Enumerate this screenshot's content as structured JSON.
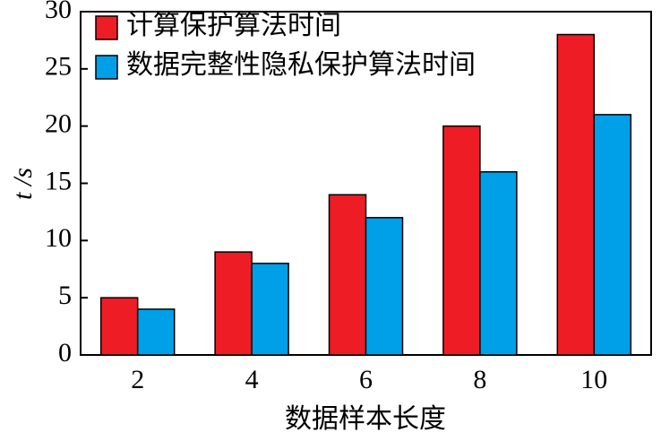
{
  "chart_data": {
    "type": "bar",
    "x_label": "数据样本长度",
    "y_label": "t /s",
    "categories": [
      "2",
      "4",
      "6",
      "8",
      "10"
    ],
    "series": [
      {
        "name": "计算保护算法时间",
        "color": "#ee1c25",
        "values": [
          5,
          9,
          14,
          20,
          28
        ]
      },
      {
        "name": "数据完整性隐私保护算法时间",
        "color": "#00a0e9",
        "values": [
          4,
          8,
          12,
          16,
          21
        ]
      }
    ],
    "ylim": [
      0,
      30
    ],
    "yticks": [
      0,
      5,
      10,
      15,
      20,
      25,
      30
    ],
    "legend": "top-left"
  }
}
